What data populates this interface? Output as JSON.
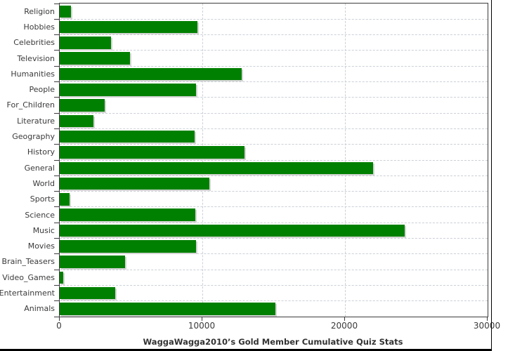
{
  "chart_data": {
    "type": "bar",
    "orientation": "horizontal",
    "xlabel": "WaggaWagga2010’s Gold Member Cumulative Quiz Stats",
    "categories": [
      "Religion",
      "Hobbies",
      "Celebrities",
      "Television",
      "Humanities",
      "People",
      "For_Children",
      "Literature",
      "Geography",
      "History",
      "General",
      "World",
      "Sports",
      "Science",
      "Music",
      "Movies",
      "Brain_Teasers",
      "Video_Games",
      "Entertainment",
      "Animals"
    ],
    "values": [
      800,
      9670,
      3600,
      4950,
      12780,
      9580,
      3150,
      2380,
      9470,
      12950,
      21950,
      10480,
      680,
      9530,
      24210,
      9570,
      4580,
      240,
      3870,
      15120
    ],
    "xlim": [
      0,
      30000
    ],
    "x_ticks": [
      0,
      10000,
      20000,
      30000
    ],
    "x_tick_labels": [
      "0",
      "10000",
      "20000",
      "30000"
    ],
    "grid": "dashed",
    "legend": "none",
    "bar_color": "#008000",
    "shadow_color": "#d5d5d5",
    "gridline_color": "#cbd0d6",
    "axis_color": "#3c3c3c",
    "text_color": "#3a3a3a",
    "edge_color": "#000000"
  }
}
